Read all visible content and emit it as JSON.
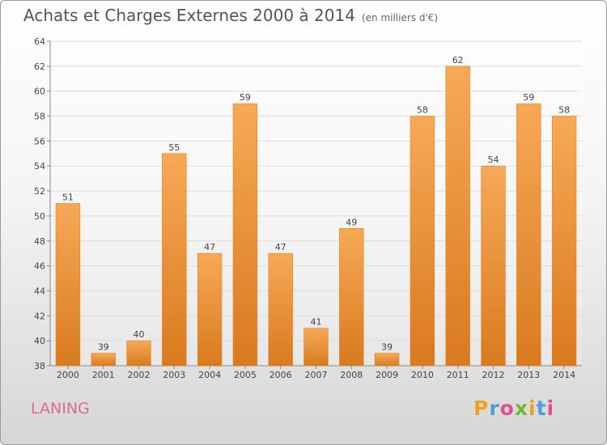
{
  "chart_data": {
    "type": "bar",
    "title": "Achats et Charges Externes 2000 à 2014",
    "subtitle": "(en milliers d'€)",
    "xlabel": "",
    "ylabel": "",
    "categories": [
      "2000",
      "2001",
      "2002",
      "2003",
      "2004",
      "2005",
      "2006",
      "2007",
      "2008",
      "2009",
      "2010",
      "2011",
      "2012",
      "2013",
      "2014"
    ],
    "values": [
      51,
      39,
      40,
      55,
      47,
      59,
      47,
      41,
      49,
      39,
      58,
      62,
      54,
      59,
      58
    ],
    "ylim": [
      38,
      64
    ],
    "yticks": [
      38,
      40,
      42,
      44,
      46,
      48,
      50,
      52,
      54,
      56,
      58,
      60,
      62,
      64
    ],
    "grid": true,
    "legend": "none",
    "colors": {
      "bar_light": "#f7a957",
      "bar_dark": "#d97a1f",
      "bar_edge": "#e8821e",
      "grid": "#dcdcdc"
    }
  },
  "footer": {
    "place": "LANING",
    "logo_letters": [
      "P",
      "r",
      "o",
      "x",
      "i",
      "t",
      "i"
    ],
    "logo_colors": [
      "#f0a020",
      "#4aa0d8",
      "#e0508a",
      "#70b830",
      "#f0a020",
      "#4aa0d8",
      "#e0508a"
    ]
  }
}
